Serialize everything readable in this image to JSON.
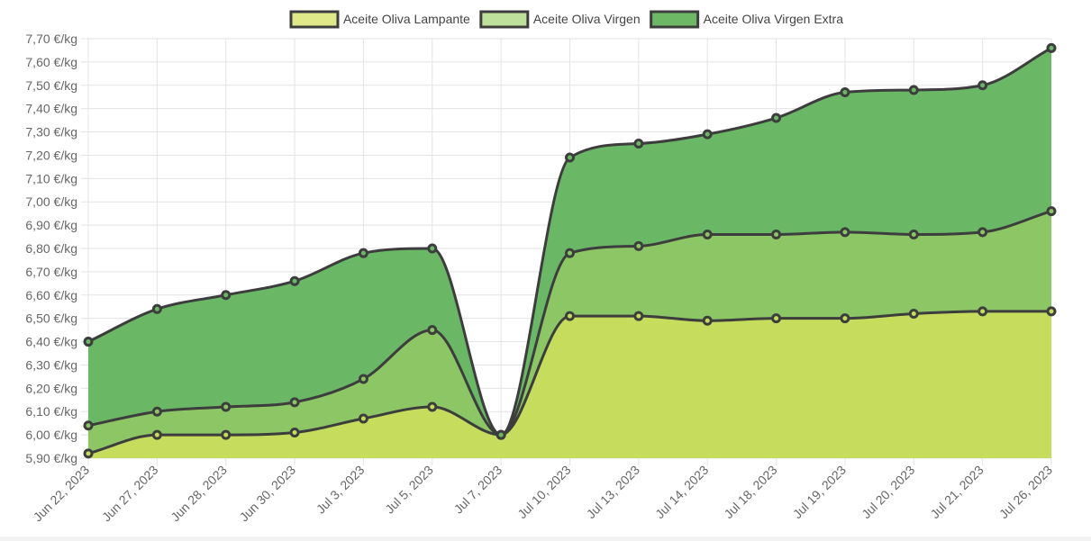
{
  "chart_data": {
    "type": "area",
    "stacked": false,
    "categories": [
      "Jun 22, 2023",
      "Jun 27, 2023",
      "Jun 28, 2023",
      "Jun 30, 2023",
      "Jul 3, 2023",
      "Jul 5, 2023",
      "Jul 7, 2023",
      "Jul 10, 2023",
      "Jul 13, 2023",
      "Jul 14, 2023",
      "Jul 18, 2023",
      "Jul 19, 2023",
      "Jul 20, 2023",
      "Jul 21, 2023",
      "Jul 26, 2023"
    ],
    "yticks": [
      "5,90 €/kg",
      "6,00 €/kg",
      "6,10 €/kg",
      "6,20 €/kg",
      "6,30 €/kg",
      "6,40 €/kg",
      "6,50 €/kg",
      "6,60 €/kg",
      "6,70 €/kg",
      "6,80 €/kg",
      "6,90 €/kg",
      "7,00 €/kg",
      "7,10 €/kg",
      "7,20 €/kg",
      "7,30 €/kg",
      "7,40 €/kg",
      "7,50 €/kg",
      "7,60 €/kg",
      "7,70 €/kg"
    ],
    "ylim": [
      5.9,
      7.7
    ],
    "y_unit": "€/kg",
    "grid": true,
    "legend_position": "top-center",
    "series": [
      {
        "name": "Aceite Oliva Lampante",
        "color": "#c5dc5c",
        "legend_color": "#dfe98a",
        "values": [
          5.92,
          6.0,
          6.0,
          6.01,
          6.07,
          6.12,
          6.0,
          6.51,
          6.51,
          6.49,
          6.5,
          6.5,
          6.52,
          6.53,
          6.53
        ]
      },
      {
        "name": "Aceite Oliva Virgen",
        "color": "#8cc665",
        "legend_color": "#bfe09a",
        "values": [
          6.04,
          6.1,
          6.12,
          6.14,
          6.24,
          6.45,
          6.0,
          6.78,
          6.81,
          6.86,
          6.86,
          6.87,
          6.86,
          6.87,
          6.96
        ]
      },
      {
        "name": "Aceite Oliva Virgen Extra",
        "color": "#6ab866",
        "legend_color": "#6cb864",
        "values": [
          6.4,
          6.54,
          6.6,
          6.66,
          6.78,
          6.8,
          6.0,
          7.19,
          7.25,
          7.29,
          7.36,
          7.47,
          7.48,
          7.5,
          7.66
        ]
      }
    ],
    "line_color": "#3d3d3d"
  }
}
